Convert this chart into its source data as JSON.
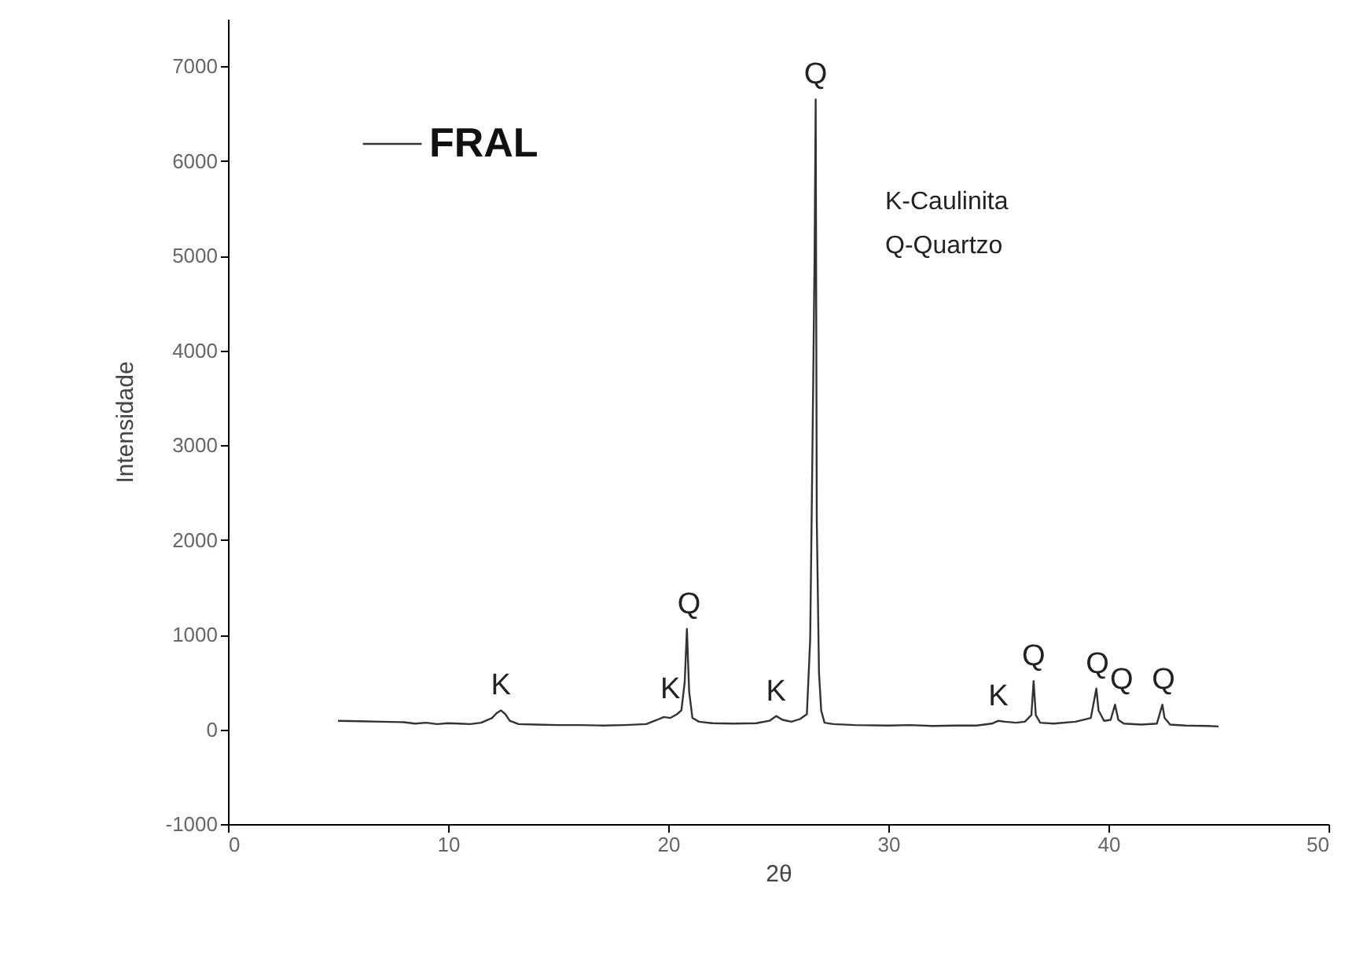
{
  "chart_data": {
    "type": "line",
    "xlabel": "2θ",
    "ylabel": "Intensidade",
    "xlim": [
      0,
      50
    ],
    "xticks": [
      0,
      10,
      20,
      30,
      40,
      50
    ],
    "ylim": [
      -1000,
      7500
    ],
    "yticks": [
      -1000,
      0,
      1000,
      2000,
      3000,
      4000,
      5000,
      6000,
      7000
    ],
    "grid": false,
    "legend": "top left",
    "line_style": "solid",
    "series": [
      {
        "name": "FRAL",
        "color": "#333333",
        "x": [
          5,
          6,
          7,
          8,
          8.5,
          9,
          9.5,
          10,
          10.5,
          11,
          11.5,
          12,
          12.2,
          12.4,
          12.6,
          12.8,
          13.2,
          14,
          15,
          16,
          17,
          18,
          19,
          19.5,
          19.8,
          20.1,
          20.4,
          20.6,
          20.75,
          20.85,
          20.95,
          21.1,
          21.4,
          22,
          23,
          24,
          24.6,
          24.9,
          25.2,
          25.6,
          26,
          26.3,
          26.45,
          26.55,
          26.65,
          26.7,
          26.75,
          26.85,
          26.95,
          27.1,
          27.5,
          28.5,
          30,
          31,
          32,
          33,
          34,
          34.7,
          35,
          35.3,
          35.8,
          36.2,
          36.5,
          36.6,
          36.7,
          36.9,
          37.5,
          38.5,
          39.2,
          39.45,
          39.55,
          39.8,
          40.1,
          40.3,
          40.45,
          40.7,
          41.5,
          42.2,
          42.45,
          42.55,
          42.8,
          43.5,
          44.5,
          45
        ],
        "values": [
          90,
          85,
          80,
          75,
          60,
          70,
          55,
          65,
          60,
          55,
          70,
          120,
          170,
          200,
          160,
          90,
          55,
          50,
          45,
          45,
          40,
          45,
          55,
          100,
          130,
          120,
          160,
          200,
          500,
          1060,
          400,
          120,
          80,
          65,
          60,
          65,
          90,
          140,
          100,
          80,
          110,
          160,
          950,
          2900,
          5000,
          6650,
          2200,
          600,
          200,
          70,
          55,
          45,
          40,
          45,
          35,
          40,
          40,
          60,
          90,
          80,
          70,
          80,
          150,
          510,
          150,
          70,
          60,
          80,
          120,
          430,
          200,
          90,
          100,
          260,
          100,
          60,
          50,
          60,
          260,
          120,
          50,
          40,
          35,
          30
        ]
      }
    ],
    "annotations": [
      {
        "text": "K",
        "x": 12.4,
        "y": 200
      },
      {
        "text": "K",
        "x": 20.1,
        "y": 160
      },
      {
        "text": "Q",
        "x": 20.95,
        "y": 1060
      },
      {
        "text": "K",
        "x": 24.9,
        "y": 140
      },
      {
        "text": "Q",
        "x": 26.7,
        "y": 6650
      },
      {
        "text": "K",
        "x": 35,
        "y": 90
      },
      {
        "text": "Q",
        "x": 36.6,
        "y": 510
      },
      {
        "text": "Q",
        "x": 39.5,
        "y": 430
      },
      {
        "text": "Q",
        "x": 40.6,
        "y": 260
      },
      {
        "text": "Q",
        "x": 42.5,
        "y": 260
      },
      "K-Caulinita",
      "Q-Quartzo"
    ]
  }
}
